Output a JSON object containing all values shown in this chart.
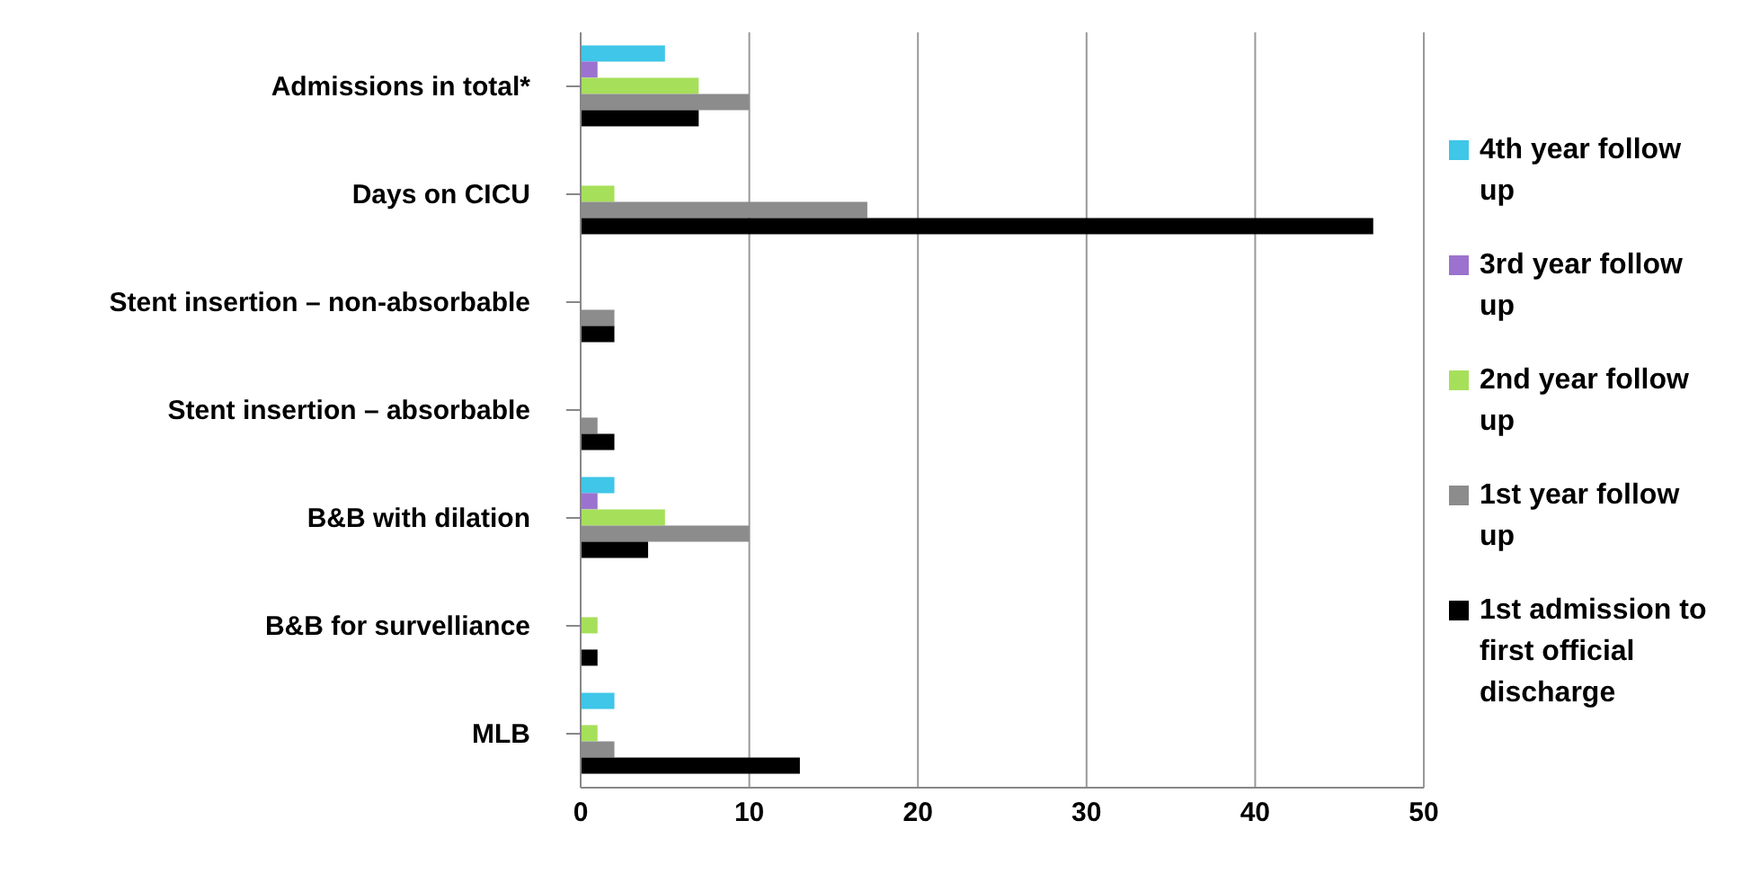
{
  "chart_data": {
    "type": "bar",
    "orientation": "horizontal",
    "categories": [
      "Admissions in total*",
      "Days on CICU",
      "Stent insertion – non-absorbable",
      "Stent insertion – absorbable",
      "B&B with dilation",
      "B&B for survelliance",
      "MLB"
    ],
    "series": [
      {
        "name": "4th year follow up",
        "color": "#3fc6e8",
        "values": [
          5,
          0,
          0,
          0,
          2,
          0,
          2
        ]
      },
      {
        "name": "3rd year follow up",
        "color": "#9b72cf",
        "values": [
          1,
          0,
          0,
          0,
          1,
          0,
          0
        ]
      },
      {
        "name": "2nd year follow up",
        "color": "#a6e05a",
        "values": [
          7,
          2,
          0,
          0,
          5,
          1,
          1
        ]
      },
      {
        "name": "1st year follow up",
        "color": "#8c8c8c",
        "values": [
          10,
          17,
          2,
          1,
          10,
          0,
          2
        ]
      },
      {
        "name": "1st admission to first official discharge",
        "color": "#000000",
        "values": [
          7,
          47,
          2,
          2,
          4,
          1,
          13
        ]
      }
    ],
    "xlim": [
      0,
      50
    ],
    "xticks": [
      0,
      10,
      20,
      30,
      40,
      50
    ],
    "grid": "x",
    "legend": "right"
  }
}
